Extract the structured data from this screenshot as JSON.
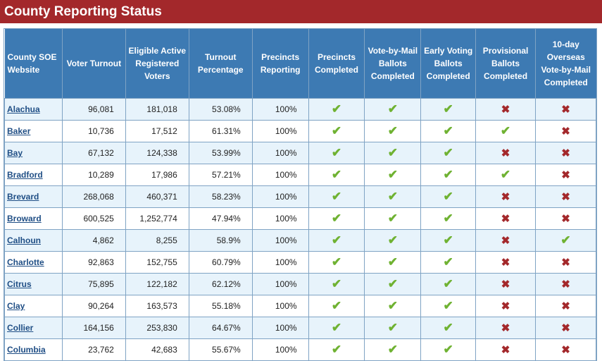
{
  "page": {
    "title": "County Reporting Status"
  },
  "columns": [
    "County SOE Website",
    "Voter Turnout",
    "Eligible Active Registered Voters",
    "Turnout Percentage",
    "Precincts Reporting",
    "Precincts Completed",
    "Vote-by-Mail Ballots Completed",
    "Early Voting Ballots Completed",
    "Provisional Ballots Completed",
    "10-day Overseas Vote-by-Mail Completed"
  ],
  "icons": {
    "yes": "checkmark-icon",
    "no": "x-mark-icon",
    "yes_color": "#6fb232",
    "no_color": "#a3282b"
  },
  "rows": [
    {
      "county": "Alachua",
      "turnout": "96,081",
      "registered": "181,018",
      "pct": "53.08%",
      "precincts": "100%",
      "status": [
        true,
        true,
        true,
        false,
        false
      ]
    },
    {
      "county": "Baker",
      "turnout": "10,736",
      "registered": "17,512",
      "pct": "61.31%",
      "precincts": "100%",
      "status": [
        true,
        true,
        true,
        true,
        false
      ]
    },
    {
      "county": "Bay",
      "turnout": "67,132",
      "registered": "124,338",
      "pct": "53.99%",
      "precincts": "100%",
      "status": [
        true,
        true,
        true,
        false,
        false
      ]
    },
    {
      "county": "Bradford",
      "turnout": "10,289",
      "registered": "17,986",
      "pct": "57.21%",
      "precincts": "100%",
      "status": [
        true,
        true,
        true,
        true,
        false
      ]
    },
    {
      "county": "Brevard",
      "turnout": "268,068",
      "registered": "460,371",
      "pct": "58.23%",
      "precincts": "100%",
      "status": [
        true,
        true,
        true,
        false,
        false
      ]
    },
    {
      "county": "Broward",
      "turnout": "600,525",
      "registered": "1,252,774",
      "pct": "47.94%",
      "precincts": "100%",
      "status": [
        true,
        true,
        true,
        false,
        false
      ]
    },
    {
      "county": "Calhoun",
      "turnout": "4,862",
      "registered": "8,255",
      "pct": "58.9%",
      "precincts": "100%",
      "status": [
        true,
        true,
        true,
        false,
        true
      ]
    },
    {
      "county": "Charlotte",
      "turnout": "92,863",
      "registered": "152,755",
      "pct": "60.79%",
      "precincts": "100%",
      "status": [
        true,
        true,
        true,
        false,
        false
      ]
    },
    {
      "county": "Citrus",
      "turnout": "75,895",
      "registered": "122,182",
      "pct": "62.12%",
      "precincts": "100%",
      "status": [
        true,
        true,
        true,
        false,
        false
      ]
    },
    {
      "county": "Clay",
      "turnout": "90,264",
      "registered": "163,573",
      "pct": "55.18%",
      "precincts": "100%",
      "status": [
        true,
        true,
        true,
        false,
        false
      ]
    },
    {
      "county": "Collier",
      "turnout": "164,156",
      "registered": "253,830",
      "pct": "64.67%",
      "precincts": "100%",
      "status": [
        true,
        true,
        true,
        false,
        false
      ]
    },
    {
      "county": "Columbia",
      "turnout": "23,762",
      "registered": "42,683",
      "pct": "55.67%",
      "precincts": "100%",
      "status": [
        true,
        true,
        true,
        false,
        false
      ]
    }
  ]
}
